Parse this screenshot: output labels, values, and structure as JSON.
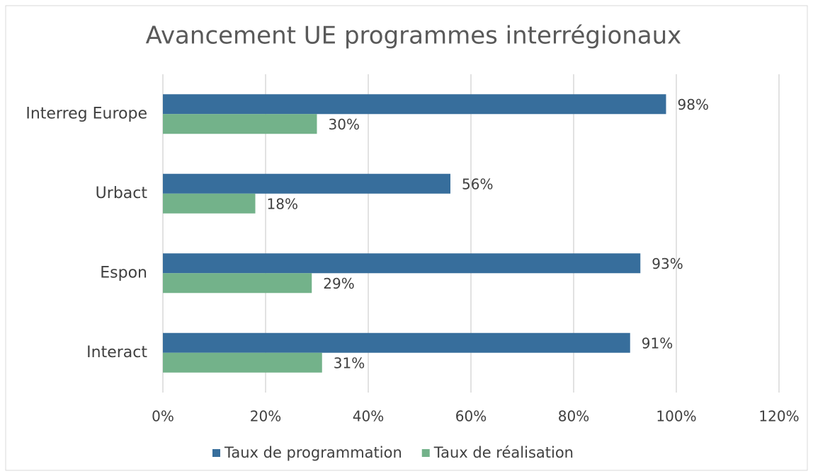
{
  "chart_data": {
    "type": "bar",
    "orientation": "horizontal",
    "title": "Avancement UE programmes interrégionaux",
    "categories": [
      "Interreg Europe",
      "Urbact",
      "Espon",
      "Interact"
    ],
    "series": [
      {
        "name": "Taux de programmation",
        "color": "#376e9c",
        "values": [
          98,
          56,
          93,
          91
        ],
        "value_labels": [
          "98%",
          "56%",
          "93%",
          "91%"
        ]
      },
      {
        "name": "Taux de réalisation",
        "color": "#73b28a",
        "values": [
          30,
          18,
          29,
          31
        ],
        "value_labels": [
          "30%",
          "18%",
          "29%",
          "31%"
        ]
      }
    ],
    "xlim": [
      0,
      120
    ],
    "xticks": [
      {
        "value": 0,
        "label": "0%"
      },
      {
        "value": 20,
        "label": "20%"
      },
      {
        "value": 40,
        "label": "40%"
      },
      {
        "value": 60,
        "label": "60%"
      },
      {
        "value": 80,
        "label": "80%"
      },
      {
        "value": 100,
        "label": "100%"
      },
      {
        "value": 120,
        "label": "120%"
      }
    ],
    "grid": true,
    "legend": "bottom"
  }
}
